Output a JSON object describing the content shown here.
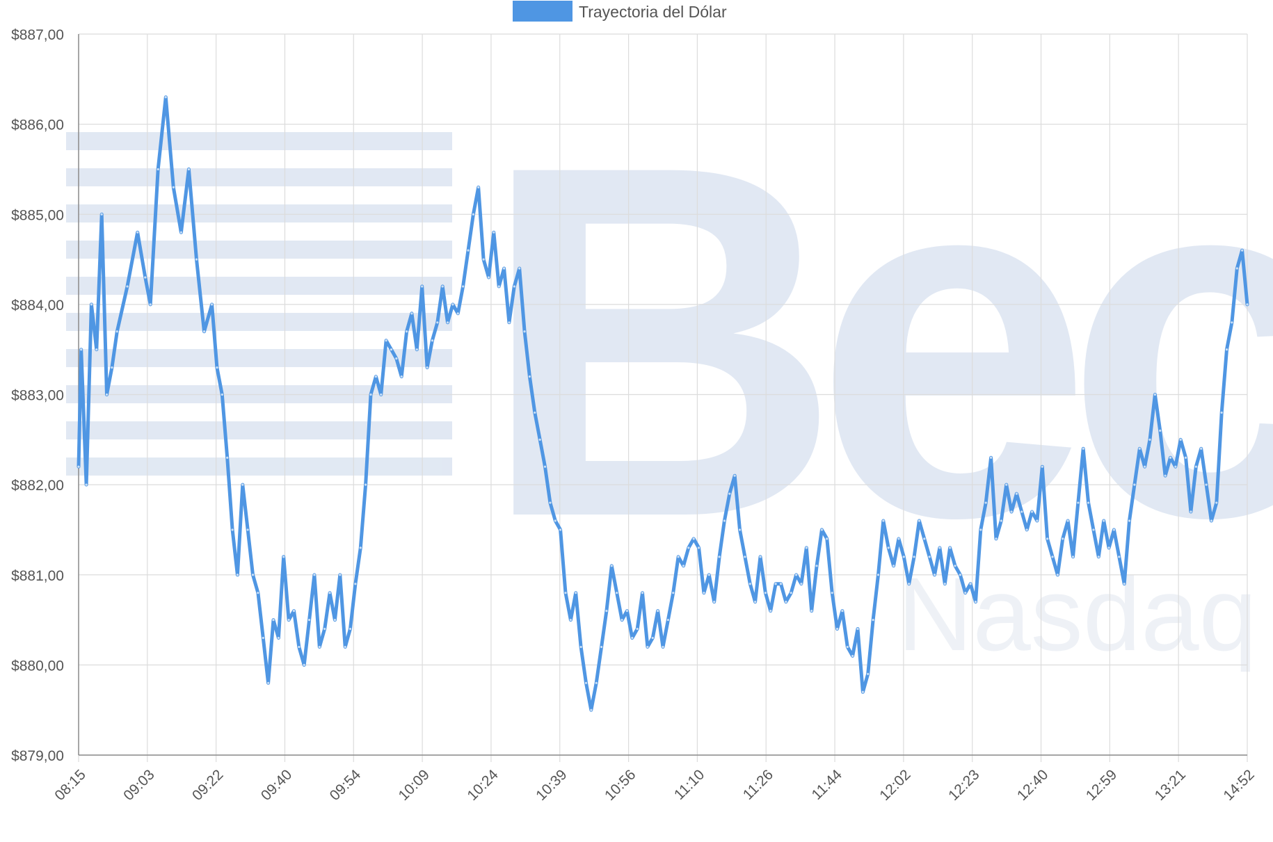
{
  "chart_data": {
    "type": "line",
    "legend": {
      "position": "top-center",
      "entries": [
        {
          "name": "Trayectoria del Dólar",
          "color": "#4f96e3"
        }
      ]
    },
    "grid": true,
    "watermark": {
      "logo_text": "Bec",
      "sub_text": "Nasdaq"
    },
    "y_axis": {
      "min": 879,
      "max": 887,
      "step": 1,
      "tick_labels": [
        "$887,00",
        "$886,00",
        "$885,00",
        "$884,00",
        "$883,00",
        "$882,00",
        "$881,00",
        "$880,00",
        "$879,00"
      ]
    },
    "x_axis": {
      "min": 0,
      "max": 1000,
      "tick_labels": [
        "08:15",
        "09:03",
        "09:22",
        "09:40",
        "09:54",
        "10:09",
        "10:24",
        "10:39",
        "10:56",
        "11:10",
        "11:26",
        "11:44",
        "12:02",
        "12:23",
        "12:40",
        "12:59",
        "13:21",
        "14:52"
      ]
    },
    "series": [
      {
        "name": "Trayectoria del Dólar",
        "color": "#4f96e3",
        "anchors": [
          [
            0,
            882.2
          ],
          [
            2,
            883.5
          ],
          [
            6,
            882
          ],
          [
            10,
            884
          ],
          [
            14,
            883.5
          ],
          [
            18,
            885
          ],
          [
            22,
            883
          ],
          [
            26,
            883.3
          ],
          [
            30,
            883.7
          ],
          [
            38,
            884.2
          ],
          [
            46,
            884.8
          ],
          [
            52,
            884.3
          ],
          [
            56,
            884
          ],
          [
            62,
            885.5
          ],
          [
            68,
            886.3
          ],
          [
            74,
            885.3
          ],
          [
            80,
            884.8
          ],
          [
            86,
            885.5
          ],
          [
            92,
            884.5
          ],
          [
            98,
            883.7
          ],
          [
            104,
            884
          ],
          [
            108,
            883.3
          ],
          [
            112,
            883
          ],
          [
            116,
            882.3
          ],
          [
            120,
            881.5
          ],
          [
            124,
            881
          ],
          [
            128,
            882
          ],
          [
            132,
            881.5
          ],
          [
            136,
            881
          ],
          [
            140,
            880.8
          ],
          [
            144,
            880.3
          ],
          [
            148,
            879.8
          ],
          [
            152,
            880.5
          ],
          [
            156,
            880.3
          ],
          [
            160,
            881.2
          ],
          [
            164,
            880.5
          ],
          [
            168,
            880.6
          ],
          [
            172,
            880.2
          ],
          [
            176,
            880
          ],
          [
            180,
            880.5
          ],
          [
            184,
            881
          ],
          [
            188,
            880.2
          ],
          [
            192,
            880.4
          ],
          [
            196,
            880.8
          ],
          [
            200,
            880.5
          ],
          [
            204,
            881
          ],
          [
            208,
            880.2
          ],
          [
            212,
            880.4
          ],
          [
            216,
            880.9
          ],
          [
            220,
            881.3
          ],
          [
            224,
            882
          ],
          [
            228,
            883
          ],
          [
            232,
            883.2
          ],
          [
            236,
            883
          ],
          [
            240,
            883.6
          ],
          [
            244,
            883.5
          ],
          [
            248,
            883.4
          ],
          [
            252,
            883.2
          ],
          [
            256,
            883.7
          ],
          [
            260,
            883.9
          ],
          [
            264,
            883.5
          ],
          [
            268,
            884.2
          ],
          [
            272,
            883.3
          ],
          [
            276,
            883.6
          ],
          [
            280,
            883.8
          ],
          [
            284,
            884.2
          ],
          [
            288,
            883.8
          ],
          [
            292,
            884
          ],
          [
            296,
            883.9
          ],
          [
            300,
            884.2
          ],
          [
            304,
            884.6
          ],
          [
            308,
            885
          ],
          [
            312,
            885.3
          ],
          [
            316,
            884.5
          ],
          [
            320,
            884.3
          ],
          [
            324,
            884.8
          ],
          [
            328,
            884.2
          ],
          [
            332,
            884.4
          ],
          [
            336,
            883.8
          ],
          [
            340,
            884.2
          ],
          [
            344,
            884.4
          ],
          [
            348,
            883.7
          ],
          [
            352,
            883.2
          ],
          [
            356,
            882.8
          ],
          [
            360,
            882.5
          ],
          [
            364,
            882.2
          ],
          [
            368,
            881.8
          ],
          [
            372,
            881.6
          ],
          [
            376,
            881.5
          ],
          [
            380,
            880.8
          ],
          [
            384,
            880.5
          ],
          [
            388,
            880.8
          ],
          [
            392,
            880.2
          ],
          [
            396,
            879.8
          ],
          [
            400,
            879.5
          ],
          [
            404,
            879.8
          ],
          [
            408,
            880.2
          ],
          [
            412,
            880.6
          ],
          [
            416,
            881.1
          ],
          [
            420,
            880.8
          ],
          [
            424,
            880.5
          ],
          [
            428,
            880.6
          ],
          [
            432,
            880.3
          ],
          [
            436,
            880.4
          ],
          [
            440,
            880.8
          ],
          [
            444,
            880.2
          ],
          [
            448,
            880.3
          ],
          [
            452,
            880.6
          ],
          [
            456,
            880.2
          ],
          [
            460,
            880.5
          ],
          [
            464,
            880.8
          ],
          [
            468,
            881.2
          ],
          [
            472,
            881.1
          ],
          [
            476,
            881.3
          ],
          [
            480,
            881.4
          ],
          [
            484,
            881.3
          ],
          [
            488,
            880.8
          ],
          [
            492,
            881
          ],
          [
            496,
            880.7
          ],
          [
            500,
            881.2
          ],
          [
            504,
            881.6
          ],
          [
            508,
            881.9
          ],
          [
            512,
            882.1
          ],
          [
            516,
            881.5
          ],
          [
            520,
            881.2
          ],
          [
            524,
            880.9
          ],
          [
            528,
            880.7
          ],
          [
            532,
            881.2
          ],
          [
            536,
            880.8
          ],
          [
            540,
            880.6
          ],
          [
            544,
            880.9
          ],
          [
            548,
            880.9
          ],
          [
            552,
            880.7
          ],
          [
            556,
            880.8
          ],
          [
            560,
            881
          ],
          [
            564,
            880.9
          ],
          [
            568,
            881.3
          ],
          [
            572,
            880.6
          ],
          [
            576,
            881.1
          ],
          [
            580,
            881.5
          ],
          [
            584,
            881.4
          ],
          [
            588,
            880.8
          ],
          [
            592,
            880.4
          ],
          [
            596,
            880.6
          ],
          [
            600,
            880.2
          ],
          [
            604,
            880.1
          ],
          [
            608,
            880.4
          ],
          [
            612,
            879.7
          ],
          [
            616,
            879.9
          ],
          [
            620,
            880.5
          ],
          [
            624,
            881
          ],
          [
            628,
            881.6
          ],
          [
            632,
            881.3
          ],
          [
            636,
            881.1
          ],
          [
            640,
            881.4
          ],
          [
            644,
            881.2
          ],
          [
            648,
            880.9
          ],
          [
            652,
            881.2
          ],
          [
            656,
            881.6
          ],
          [
            660,
            881.4
          ],
          [
            664,
            881.2
          ],
          [
            668,
            881
          ],
          [
            672,
            881.3
          ],
          [
            676,
            880.9
          ],
          [
            680,
            881.3
          ],
          [
            684,
            881.1
          ],
          [
            688,
            881
          ],
          [
            692,
            880.8
          ],
          [
            696,
            880.9
          ],
          [
            700,
            880.7
          ],
          [
            704,
            881.5
          ],
          [
            708,
            881.8
          ],
          [
            712,
            882.3
          ],
          [
            716,
            881.4
          ],
          [
            720,
            881.6
          ],
          [
            724,
            882
          ],
          [
            728,
            881.7
          ],
          [
            732,
            881.9
          ],
          [
            736,
            881.7
          ],
          [
            740,
            881.5
          ],
          [
            744,
            881.7
          ],
          [
            748,
            881.6
          ],
          [
            752,
            882.2
          ],
          [
            756,
            881.4
          ],
          [
            760,
            881.2
          ],
          [
            764,
            881
          ],
          [
            768,
            881.4
          ],
          [
            772,
            881.6
          ],
          [
            776,
            881.2
          ],
          [
            780,
            881.8
          ],
          [
            784,
            882.4
          ],
          [
            788,
            881.8
          ],
          [
            792,
            881.5
          ],
          [
            796,
            881.2
          ],
          [
            800,
            881.6
          ],
          [
            804,
            881.3
          ],
          [
            808,
            881.5
          ],
          [
            812,
            881.2
          ],
          [
            816,
            880.9
          ],
          [
            820,
            881.6
          ],
          [
            824,
            882
          ],
          [
            828,
            882.4
          ],
          [
            832,
            882.2
          ],
          [
            836,
            882.5
          ],
          [
            840,
            883
          ],
          [
            844,
            882.6
          ],
          [
            848,
            882.1
          ],
          [
            852,
            882.3
          ],
          [
            856,
            882.2
          ],
          [
            860,
            882.5
          ],
          [
            864,
            882.3
          ],
          [
            868,
            881.7
          ],
          [
            872,
            882.2
          ],
          [
            876,
            882.4
          ],
          [
            880,
            882
          ],
          [
            884,
            881.6
          ],
          [
            888,
            881.8
          ],
          [
            892,
            882.8
          ],
          [
            896,
            883.5
          ],
          [
            900,
            883.8
          ],
          [
            904,
            884.4
          ],
          [
            908,
            884.6
          ],
          [
            912,
            884
          ]
        ]
      }
    ]
  }
}
